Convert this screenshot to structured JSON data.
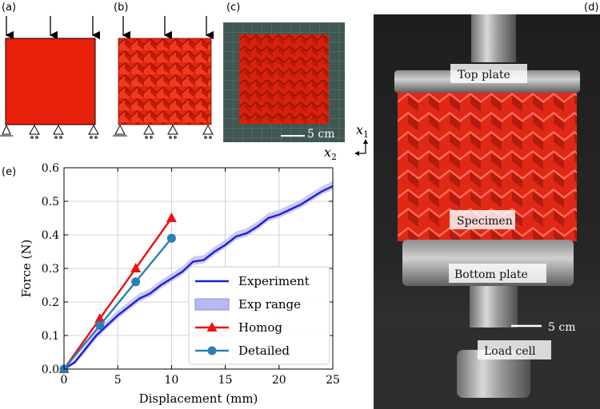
{
  "panels": {
    "a": "(a)",
    "b": "(b)",
    "c": "(c)",
    "d": "(d)",
    "e": "(e)"
  },
  "scale_bar_c": "5 cm",
  "scale_bar_d": "5 cm",
  "axes_triad": {
    "x1": "x",
    "x1_sub": "1",
    "x2": "x",
    "x2_sub": "2"
  },
  "photo_labels": {
    "top_plate": "Top plate",
    "specimen": "Specimen",
    "bottom_plate": "Bottom plate",
    "load_cell": "Load cell"
  },
  "colors": {
    "specimen_red": "#e8200a",
    "experiment": "#1f1fd6",
    "exp_range": "#b9b9ef",
    "homog": "#ee1111",
    "detailed": "#2a7fb4"
  },
  "chart_data": {
    "type": "line",
    "xlabel": "Displacement (mm)",
    "ylabel": "Force (N)",
    "xlim": [
      0,
      25
    ],
    "ylim": [
      0,
      0.6
    ],
    "xticks": [
      "0",
      "5",
      "10",
      "15",
      "20",
      "25"
    ],
    "yticks": [
      "0.0",
      "0.1",
      "0.2",
      "0.3",
      "0.4",
      "0.5",
      "0.6"
    ],
    "grid": true,
    "legend_position": "bottom-right",
    "series": [
      {
        "name": "Experiment",
        "style": "line",
        "color": "#1f1fd6",
        "x": [
          0,
          1,
          2,
          3,
          4,
          5,
          6,
          7,
          8,
          9,
          10,
          11,
          12,
          13,
          14,
          15,
          16,
          17,
          18,
          19,
          20,
          21,
          22,
          23,
          24,
          25
        ],
        "y": [
          0,
          0.02,
          0.06,
          0.1,
          0.13,
          0.16,
          0.185,
          0.21,
          0.225,
          0.25,
          0.27,
          0.29,
          0.32,
          0.325,
          0.35,
          0.37,
          0.395,
          0.405,
          0.425,
          0.45,
          0.46,
          0.475,
          0.49,
          0.51,
          0.53,
          0.545
        ]
      },
      {
        "name": "Exp range",
        "style": "band",
        "color": "#b9b9ef",
        "x": [
          0,
          1,
          2,
          3,
          4,
          5,
          6,
          7,
          8,
          9,
          10,
          11,
          12,
          13,
          14,
          15,
          16,
          17,
          18,
          19,
          20,
          21,
          22,
          23,
          24,
          25
        ],
        "lower": [
          0,
          0.015,
          0.05,
          0.09,
          0.12,
          0.15,
          0.175,
          0.2,
          0.215,
          0.24,
          0.26,
          0.28,
          0.31,
          0.315,
          0.34,
          0.36,
          0.385,
          0.395,
          0.415,
          0.44,
          0.45,
          0.465,
          0.48,
          0.5,
          0.52,
          0.535
        ],
        "upper": [
          0,
          0.03,
          0.07,
          0.115,
          0.145,
          0.175,
          0.2,
          0.225,
          0.24,
          0.265,
          0.285,
          0.305,
          0.335,
          0.34,
          0.365,
          0.385,
          0.41,
          0.42,
          0.44,
          0.465,
          0.475,
          0.49,
          0.505,
          0.525,
          0.545,
          0.56
        ]
      },
      {
        "name": "Homog",
        "style": "line-triangle",
        "color": "#ee1111",
        "x": [
          0,
          3.33,
          6.67,
          10
        ],
        "y": [
          0,
          0.15,
          0.3,
          0.45
        ]
      },
      {
        "name": "Detailed",
        "style": "line-circle",
        "color": "#2a7fb4",
        "x": [
          0,
          3.33,
          6.67,
          10
        ],
        "y": [
          0,
          0.13,
          0.26,
          0.39
        ]
      }
    ]
  }
}
